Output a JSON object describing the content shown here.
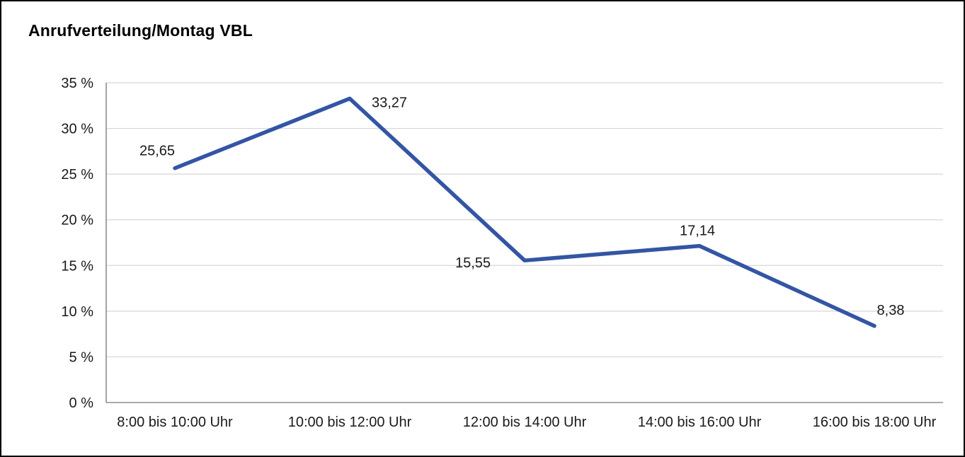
{
  "chart_data": {
    "type": "line",
    "title": "Anrufverteilung/Montag VBL",
    "categories": [
      "8:00 bis 10:00 Uhr",
      "10:00 bis 12:00 Uhr",
      "12:00 bis 14:00 Uhr",
      "14:00 bis 16:00 Uhr",
      "16:00 bis 18:00 Uhr"
    ],
    "values": [
      25.65,
      33.27,
      15.55,
      17.14,
      8.38
    ],
    "value_labels": [
      "25,65",
      "33,27",
      "15,55",
      "17,14",
      "8,38"
    ],
    "xlabel": "",
    "ylabel": "",
    "ylim": [
      0,
      35
    ],
    "yticks": [
      0,
      5,
      10,
      15,
      20,
      25,
      30,
      35
    ],
    "ytick_labels": [
      "0 %",
      "5 %",
      "10 %",
      "15 %",
      "20 %",
      "25 %",
      "30 %",
      "35 %"
    ],
    "grid": true,
    "legend_position": "none",
    "line_color": "#3355a4",
    "grid_color": "#d6d6d6",
    "axis_color": "#8e8e8e",
    "text_color": "#1a1a1a"
  }
}
